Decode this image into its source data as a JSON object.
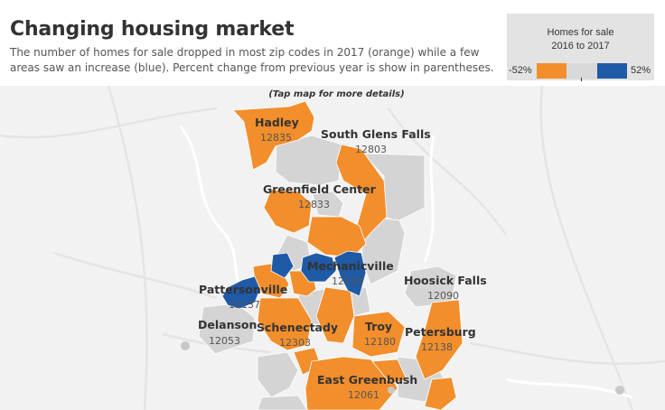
{
  "title": "Changing housing market",
  "subtitle": "The number of homes for sale dropped in most zip codes in 2017 (orange) while a few areas saw an increase (blue). Percent change from previous year is show in parentheses.",
  "legend": {
    "title_line1": "Homes for sale",
    "title_line2": "2016 to 2017",
    "min_label": "-52%",
    "max_label": "52%",
    "ramp_colors": [
      "#f28e2b",
      "#d9d9d9",
      "#1f5aa6"
    ]
  },
  "map_hint": "(Tap map for more details)",
  "colors": {
    "decrease": "#f28e2b",
    "increase": "#1f5aa6",
    "neutral": "#d4d4d4",
    "basemap": "#f2f2f2",
    "water": "#ffffff",
    "roads": "#e2e2e2"
  },
  "places": [
    {
      "name": "Hadley",
      "zip": "12835"
    },
    {
      "name": "South Glens Falls",
      "zip": "12803"
    },
    {
      "name": "Greenfield Center",
      "zip": "12833"
    },
    {
      "name": "Mechanicville",
      "zip": "12118"
    },
    {
      "name": "Hoosick Falls",
      "zip": "12090"
    },
    {
      "name": "Pattersonville",
      "zip": "12137"
    },
    {
      "name": "Delanson",
      "zip": "12053"
    },
    {
      "name": "Schenectady",
      "zip": "12303"
    },
    {
      "name": "Troy",
      "zip": "12180"
    },
    {
      "name": "Petersburg",
      "zip": "12138"
    },
    {
      "name": "East Greenbush",
      "zip": "12061"
    }
  ]
}
